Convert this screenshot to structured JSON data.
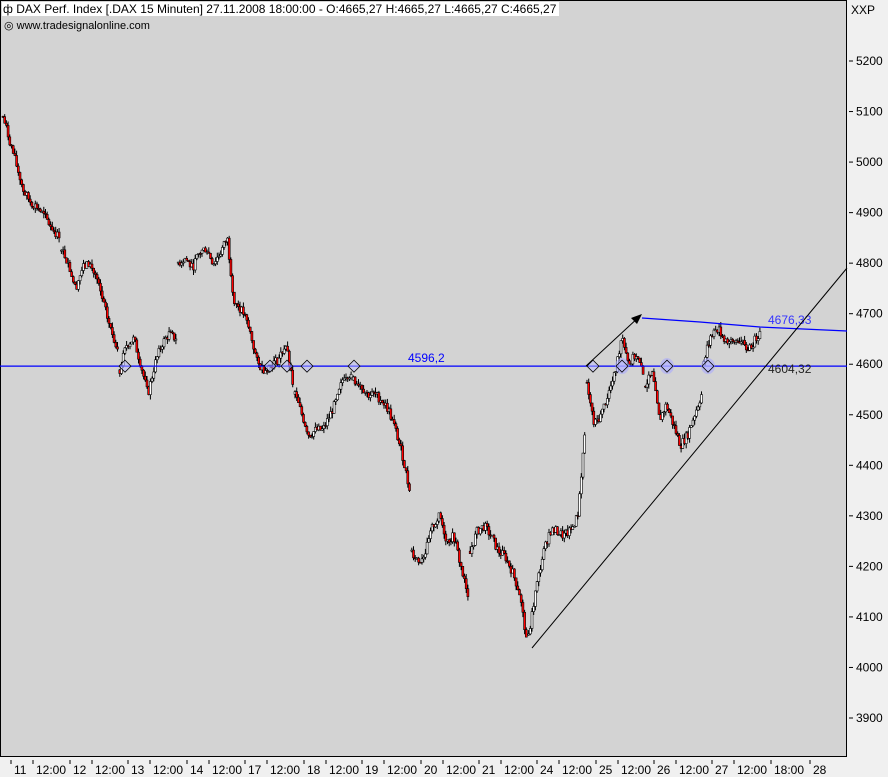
{
  "header": {
    "title": "DAX Perf. Index [.DAX  15 Minuten] 27.11.2008 18:00:00 - O:4665,27 H:4665,27 L:4665,27 C:4665,27",
    "source": "www.tradesignalonline.com"
  },
  "axis_unit": "XXP",
  "chart_data": {
    "type": "candlestick",
    "title": "DAX Perf. Index [.DAX  15 Minuten]",
    "ylim": [
      3830,
      5320
    ],
    "y_ticks": [
      5200,
      5100,
      5000,
      4900,
      4800,
      4700,
      4600,
      4500,
      4400,
      4300,
      4200,
      4100,
      4000,
      3900
    ],
    "y_tick_labels": [
      "5200",
      "5100",
      "5000",
      "4900",
      "4800",
      "4700",
      "4600",
      "4500",
      "4400",
      "4300",
      "4200",
      "4100",
      "4000",
      "3900"
    ],
    "x_tick_labels": [
      "11",
      "12:00",
      "12",
      "12:00",
      "13",
      "12:00",
      "14",
      "12:00",
      "17",
      "12:00",
      "18",
      "12:00",
      "19",
      "12:00",
      "20",
      "12:00",
      "21",
      "12:00",
      "24",
      "12:00",
      "25",
      "12:00",
      "26",
      "12:00",
      "27",
      "12:00",
      "18:00",
      "28"
    ],
    "grid": false,
    "colors": {
      "up": "#ffffff",
      "down": "#ff0000",
      "outline": "#000000",
      "background": "#d3d3d3",
      "level_line": "#0000ff",
      "trend_line": "#000000"
    },
    "sessions_approx_prices": [
      {
        "day": "11",
        "prices": [
          5090,
          5040,
          4990,
          4940,
          4920,
          4910,
          4890,
          4870,
          4850
        ]
      },
      {
        "day": "12",
        "prices": [
          4830,
          4800,
          4750,
          4790,
          4800,
          4770,
          4720,
          4670,
          4630
        ]
      },
      {
        "day": "13",
        "prices": [
          4590,
          4640,
          4650,
          4600,
          4540,
          4600,
          4640,
          4660,
          4650
        ]
      },
      {
        "day": "14",
        "prices": [
          4800,
          4810,
          4790,
          4820,
          4830,
          4800,
          4820,
          4850,
          4720
        ]
      },
      {
        "day": "17",
        "prices": [
          4720,
          4700,
          4660,
          4600,
          4590,
          4600,
          4610,
          4640,
          4560
        ]
      },
      {
        "day": "18",
        "prices": [
          4540,
          4500,
          4460,
          4470,
          4470,
          4500,
          4530,
          4580,
          4580
        ]
      },
      {
        "day": "19",
        "prices": [
          4570,
          4560,
          4540,
          4540,
          4530,
          4510,
          4470,
          4420,
          4350
        ]
      },
      {
        "day": "20",
        "prices": [
          4230,
          4210,
          4230,
          4280,
          4300,
          4250,
          4260,
          4200,
          4140
        ]
      },
      {
        "day": "21",
        "prices": [
          4230,
          4270,
          4280,
          4260,
          4230,
          4220,
          4190,
          4150,
          4060
        ]
      },
      {
        "day": "24",
        "prices": [
          4060,
          4150,
          4220,
          4270,
          4270,
          4260,
          4270,
          4300,
          4460
        ]
      },
      {
        "day": "25",
        "prices": [
          4560,
          4480,
          4500,
          4540,
          4580,
          4660,
          4600,
          4620,
          4580
        ]
      },
      {
        "day": "26",
        "prices": [
          4560,
          4580,
          4490,
          4520,
          4480,
          4440,
          4460,
          4500,
          4540
        ]
      },
      {
        "day": "27",
        "prices": [
          4600,
          4660,
          4670,
          4650,
          4640,
          4650,
          4630,
          4640,
          4665
        ]
      }
    ],
    "last": {
      "open": 4665.27,
      "high": 4665.27,
      "low": 4665.27,
      "close": 4665.27
    },
    "annotations": {
      "horizontal_level": {
        "value": 4596.2,
        "label": "4596,2"
      },
      "resistance_line": {
        "label": "4676,33",
        "value": 4676.33
      },
      "support_line": {
        "label": "4604,32",
        "value": 4604.32
      }
    }
  }
}
